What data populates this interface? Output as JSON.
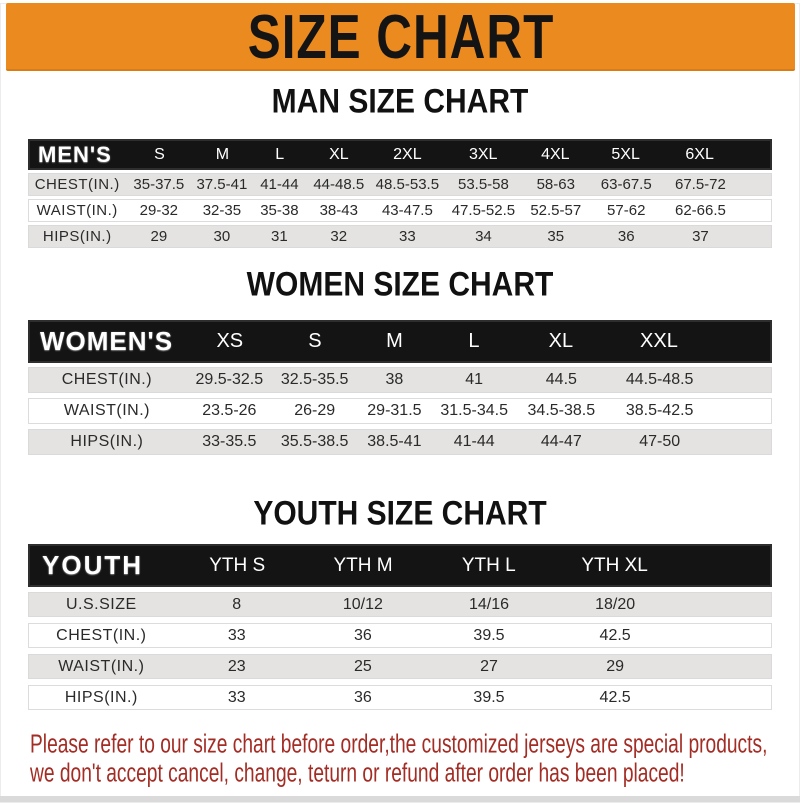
{
  "banner": {
    "title": "SIZE CHART",
    "bg_color": "#EB8A1F",
    "text_color": "#141414"
  },
  "sections": [
    {
      "heading": "MAN SIZE CHART",
      "label": "MEN'S",
      "columns": [
        "S",
        "M",
        "L",
        "XL",
        "2XL",
        "3XL",
        "4XL",
        "5XL",
        "6XL"
      ],
      "rows": [
        {
          "label": "CHEST(IN.)",
          "values": [
            "35-37.5",
            "37.5-41",
            "41-44",
            "44-48.5",
            "48.5-53.5",
            "53.5-58",
            "58-63",
            "63-67.5",
            "67.5-72"
          ]
        },
        {
          "label": "WAIST(IN.)",
          "values": [
            "29-32",
            "32-35",
            "35-38",
            "38-43",
            "43-47.5",
            "47.5-52.5",
            "52.5-57",
            "57-62",
            "62-66.5"
          ]
        },
        {
          "label": "HIPS(IN.)",
          "values": [
            "29",
            "30",
            "31",
            "32",
            "33",
            "34",
            "35",
            "36",
            "37"
          ]
        }
      ]
    },
    {
      "heading": "WOMEN SIZE CHART",
      "label": "WOMEN'S",
      "columns": [
        "XS",
        "S",
        "M",
        "L",
        "XL",
        "XXL"
      ],
      "rows": [
        {
          "label": "CHEST(IN.)",
          "values": [
            "29.5-32.5",
            "32.5-35.5",
            "38",
            "41",
            "44.5",
            "44.5-48.5"
          ]
        },
        {
          "label": "WAIST(IN.)",
          "values": [
            "23.5-26",
            "26-29",
            "29-31.5",
            "31.5-34.5",
            "34.5-38.5",
            "38.5-42.5"
          ]
        },
        {
          "label": "HIPS(IN.)",
          "values": [
            "33-35.5",
            "35.5-38.5",
            "38.5-41",
            "41-44",
            "44-47",
            "47-50"
          ]
        }
      ]
    },
    {
      "heading": "YOUTH SIZE CHART",
      "label": "YOUTH",
      "columns": [
        "YTH S",
        "YTH M",
        "YTH L",
        "YTH XL"
      ],
      "rows": [
        {
          "label": "U.S.SIZE",
          "values": [
            "8",
            "10/12",
            "14/16",
            "18/20"
          ]
        },
        {
          "label": "CHEST(IN.)",
          "values": [
            "33",
            "36",
            "39.5",
            "42.5"
          ]
        },
        {
          "label": "WAIST(IN.)",
          "values": [
            "23",
            "25",
            "27",
            "29"
          ]
        },
        {
          "label": "HIPS(IN.)",
          "values": [
            "33",
            "36",
            "39.5",
            "42.5"
          ]
        }
      ]
    }
  ],
  "footer": {
    "line1": "Please refer to our size chart before order,the customized jerseys are special products,",
    "line2": "we don't accept cancel, change, teturn or refund after order has been placed!",
    "text_color": "#A32C24"
  },
  "colors": {
    "banner_orange": "#EB8A1F",
    "header_bar_black": "#141414",
    "row_gray": "#E4E3E1",
    "note_red": "#A32C24"
  }
}
